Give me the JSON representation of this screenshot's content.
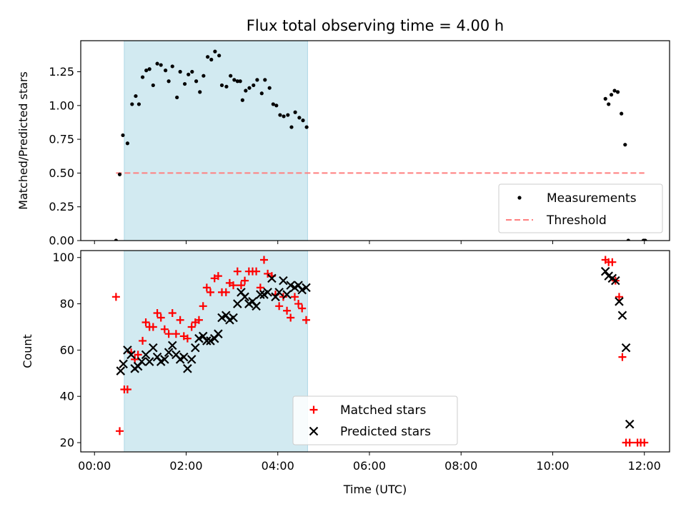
{
  "chart_data": [
    {
      "type": "scatter",
      "title": "Flux total observing time = 4.00 h",
      "ylabel": "Matched/Predicted stars",
      "xlim": [
        -0.3,
        12.55
      ],
      "ylim": [
        0,
        1.48
      ],
      "yticks": [
        "0.00",
        "0.25",
        "0.50",
        "0.75",
        "1.00",
        "1.25"
      ],
      "ytick_values": [
        0,
        0.25,
        0.5,
        0.75,
        1.0,
        1.25
      ],
      "shaded_span": {
        "x0": 0.65,
        "x1": 4.65,
        "color": "#add8e6"
      },
      "legend": {
        "placement": "lower-right",
        "entries": [
          "Measurements",
          "Threshold"
        ]
      },
      "threshold": {
        "name": "Threshold",
        "value": 0.5,
        "x_start": 0.47,
        "x_end": 12.0,
        "color": "#ff7f7f",
        "style": "dashed"
      },
      "series": [
        {
          "name": "Measurements",
          "color": "#000000",
          "marker": "dot",
          "x": [
            0.47,
            0.55,
            0.62,
            0.72,
            0.82,
            0.9,
            0.97,
            1.05,
            1.13,
            1.2,
            1.28,
            1.37,
            1.45,
            1.55,
            1.62,
            1.7,
            1.8,
            1.87,
            1.97,
            2.05,
            2.13,
            2.22,
            2.3,
            2.38,
            2.47,
            2.55,
            2.63,
            2.72,
            2.78,
            2.88,
            2.97,
            3.05,
            3.12,
            3.18,
            3.23,
            3.3,
            3.38,
            3.47,
            3.55,
            3.65,
            3.72,
            3.82,
            3.9,
            3.97,
            4.05,
            4.13,
            4.22,
            4.3,
            4.38,
            4.47,
            4.55,
            4.63,
            11.15,
            11.22,
            11.28,
            11.35,
            11.42,
            11.5,
            11.58,
            11.65,
            11.98,
            12.0,
            12.02
          ],
          "y": [
            0.0,
            0.49,
            0.78,
            0.72,
            1.01,
            1.07,
            1.01,
            1.21,
            1.26,
            1.27,
            1.15,
            1.31,
            1.3,
            1.26,
            1.18,
            1.29,
            1.06,
            1.25,
            1.16,
            1.23,
            1.25,
            1.18,
            1.1,
            1.22,
            1.36,
            1.34,
            1.4,
            1.37,
            1.15,
            1.14,
            1.22,
            1.19,
            1.18,
            1.18,
            1.04,
            1.11,
            1.13,
            1.15,
            1.19,
            1.09,
            1.19,
            1.13,
            1.01,
            1.0,
            0.93,
            0.92,
            0.93,
            0.84,
            0.95,
            0.91,
            0.89,
            0.84,
            1.05,
            1.01,
            1.08,
            1.11,
            1.1,
            0.94,
            0.71,
            0.0,
            0.0,
            0.0,
            0.0
          ]
        }
      ]
    },
    {
      "type": "scatter",
      "xlabel": "Time (UTC)",
      "ylabel": "Count",
      "xlim": [
        -0.3,
        12.55
      ],
      "ylim": [
        16,
        103
      ],
      "xticks": [
        "00:00",
        "02:00",
        "04:00",
        "06:00",
        "08:00",
        "10:00",
        "12:00"
      ],
      "xtick_values": [
        0,
        2,
        4,
        6,
        8,
        10,
        12
      ],
      "yticks": [
        "20",
        "40",
        "60",
        "80",
        "100"
      ],
      "ytick_values": [
        20,
        40,
        60,
        80,
        100
      ],
      "shaded_span": {
        "x0": 0.65,
        "x1": 4.65,
        "color": "#add8e6"
      },
      "legend": {
        "placement": "lower-center",
        "entries": [
          "Matched stars",
          "Predicted stars"
        ]
      },
      "series": [
        {
          "name": "Matched stars",
          "color": "#ff0000",
          "marker": "plus",
          "x": [
            0.47,
            0.55,
            0.65,
            0.72,
            0.8,
            0.88,
            0.95,
            1.05,
            1.12,
            1.2,
            1.28,
            1.37,
            1.45,
            1.53,
            1.62,
            1.7,
            1.78,
            1.87,
            1.95,
            2.03,
            2.12,
            2.2,
            2.28,
            2.37,
            2.45,
            2.53,
            2.62,
            2.7,
            2.78,
            2.87,
            2.95,
            3.03,
            3.12,
            3.2,
            3.28,
            3.37,
            3.45,
            3.53,
            3.62,
            3.7,
            3.78,
            3.87,
            3.95,
            4.03,
            4.12,
            4.2,
            4.28,
            4.37,
            4.45,
            4.53,
            4.62,
            11.15,
            11.22,
            11.3,
            11.37,
            11.45,
            11.52,
            11.6,
            11.68,
            11.85,
            11.92,
            12.0
          ],
          "y": [
            83,
            25,
            43,
            43,
            59,
            56,
            58,
            64,
            72,
            70,
            70,
            76,
            74,
            69,
            67,
            76,
            67,
            73,
            66,
            65,
            70,
            72,
            73,
            79,
            87,
            85,
            91,
            92,
            85,
            85,
            89,
            88,
            94,
            88,
            90,
            94,
            94,
            94,
            87,
            99,
            93,
            92,
            84,
            79,
            83,
            77,
            74,
            83,
            80,
            78,
            73,
            99,
            98,
            98,
            90,
            83,
            57,
            20,
            20,
            20,
            20,
            20
          ]
        },
        {
          "name": "Predicted stars",
          "color": "#000000",
          "marker": "x",
          "x": [
            0.57,
            0.63,
            0.72,
            0.8,
            0.88,
            0.95,
            1.03,
            1.12,
            1.2,
            1.28,
            1.37,
            1.45,
            1.53,
            1.62,
            1.7,
            1.78,
            1.87,
            1.95,
            2.03,
            2.12,
            2.2,
            2.28,
            2.37,
            2.45,
            2.53,
            2.62,
            2.7,
            2.78,
            2.87,
            2.95,
            3.03,
            3.12,
            3.2,
            3.28,
            3.37,
            3.45,
            3.53,
            3.62,
            3.7,
            3.78,
            3.87,
            3.95,
            4.03,
            4.12,
            4.2,
            4.28,
            4.37,
            4.45,
            4.53,
            4.62,
            11.15,
            11.22,
            11.3,
            11.37,
            11.45,
            11.52,
            11.6,
            11.68
          ],
          "y": [
            51,
            54,
            60,
            58,
            52,
            53,
            55,
            58,
            55,
            61,
            57,
            55,
            56,
            59,
            62,
            58,
            56,
            57,
            52,
            56,
            61,
            65,
            66,
            64,
            64,
            65,
            67,
            74,
            75,
            73,
            74,
            80,
            85,
            83,
            80,
            81,
            79,
            84,
            84,
            85,
            91,
            83,
            85,
            90,
            84,
            88,
            87,
            88,
            86,
            87,
            94,
            92,
            91,
            90,
            81,
            75,
            61,
            28
          ]
        }
      ]
    }
  ]
}
